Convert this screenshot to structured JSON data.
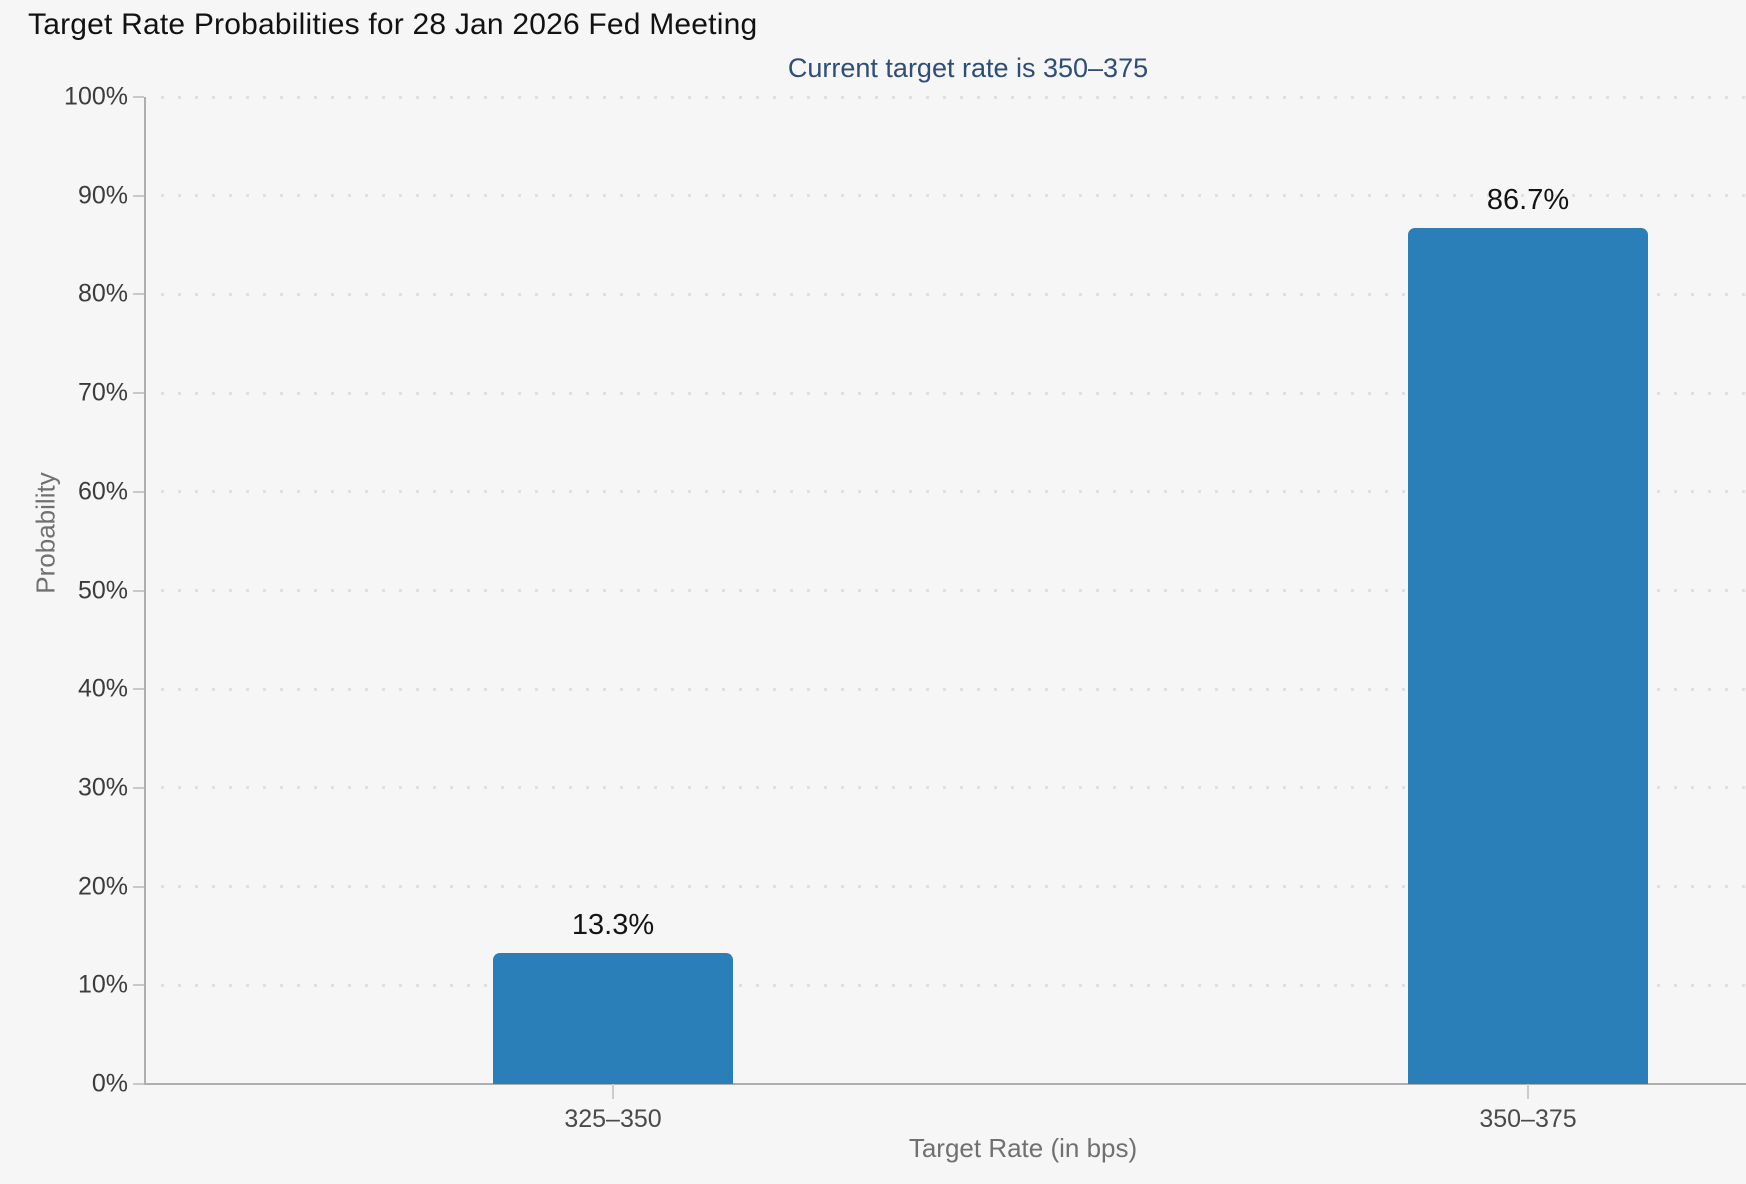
{
  "header": {
    "title": "Target Rate Probabilities for 28 Jan 2026 Fed Meeting",
    "subtitle": "Current target rate is 350–375"
  },
  "chart_data": {
    "type": "bar",
    "title": "Target Rate Probabilities for 28 Jan 2026 Fed Meeting",
    "subtitle": "Current target rate is 350–375",
    "categories": [
      "325–350",
      "350–375"
    ],
    "values": [
      13.3,
      86.7
    ],
    "value_labels": [
      "13.3%",
      "86.7%"
    ],
    "xlabel": "Target Rate (in bps)",
    "ylabel": "Probability",
    "ylim": [
      0,
      100
    ],
    "ytick_step": 10,
    "ytick_labels": [
      "0%",
      "10%",
      "20%",
      "30%",
      "40%",
      "50%",
      "60%",
      "70%",
      "80%",
      "90%",
      "100%"
    ],
    "grid": "horizontal-dotted",
    "legend_position": "none",
    "bar_corner": "rounded-top"
  },
  "colors": {
    "background": "#f5f6f5",
    "bar": "#2b7fb8",
    "title_text": "#121212",
    "subtitle_text": "#2e4d77",
    "axis_line": "#aeaeae",
    "grid_dot": "#e0e0e0",
    "tick_label": "#3c3c3c",
    "axis_title": "#707070",
    "value_label": "#141414"
  }
}
